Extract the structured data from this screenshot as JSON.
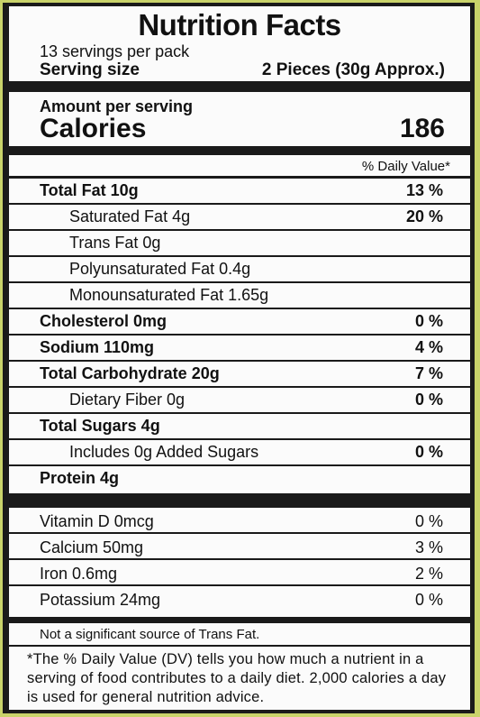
{
  "header": {
    "title": "Nutrition Facts",
    "servings": "13 servings per pack",
    "serving_size_label": "Serving size",
    "serving_size_value": "2 Pieces (30g Approx.)"
  },
  "calories": {
    "amount_label": "Amount per serving",
    "label": "Calories",
    "value": "186"
  },
  "daily_value_header": "% Daily Value*",
  "nutrients": [
    {
      "name": "Total Fat 10g",
      "pct": "13 %"
    },
    {
      "name": "Saturated Fat 4g",
      "pct": "20 %"
    },
    {
      "name": "Trans Fat 0g",
      "pct": ""
    },
    {
      "name": "Polyunsaturated Fat 0.4g",
      "pct": ""
    },
    {
      "name": "Monounsaturated Fat 1.65g",
      "pct": ""
    },
    {
      "name": "Cholesterol 0mg",
      "pct": "0 %"
    },
    {
      "name": "Sodium 110mg",
      "pct": "4 %"
    },
    {
      "name": "Total Carbohydrate 20g",
      "pct": "7 %"
    },
    {
      "name": "Dietary Fiber 0g",
      "pct": "0 %"
    },
    {
      "name": "Total Sugars 4g",
      "pct": ""
    },
    {
      "name": "Includes 0g Added Sugars",
      "pct": "0 %"
    },
    {
      "name": "Protein 4g",
      "pct": ""
    }
  ],
  "vitamins": [
    {
      "name": "Vitamin D 0mcg",
      "pct": "0 %"
    },
    {
      "name": "Calcium 50mg",
      "pct": "3 %"
    },
    {
      "name": "Iron 0.6mg",
      "pct": "2 %"
    },
    {
      "name": "Potassium 24mg",
      "pct": "0 %"
    }
  ],
  "footnote": {
    "not_significant": "Not a significant source of Trans Fat.",
    "daily_value_note": "*The % Daily Value (DV) tells you how much a nutrient in a serving of food contributes to a daily diet. 2,000 calories a day is used for general nutrition advice."
  },
  "colors": {
    "background": "#c9d36a",
    "border": "#1a1a1a",
    "panel": "#fbfbfb"
  }
}
